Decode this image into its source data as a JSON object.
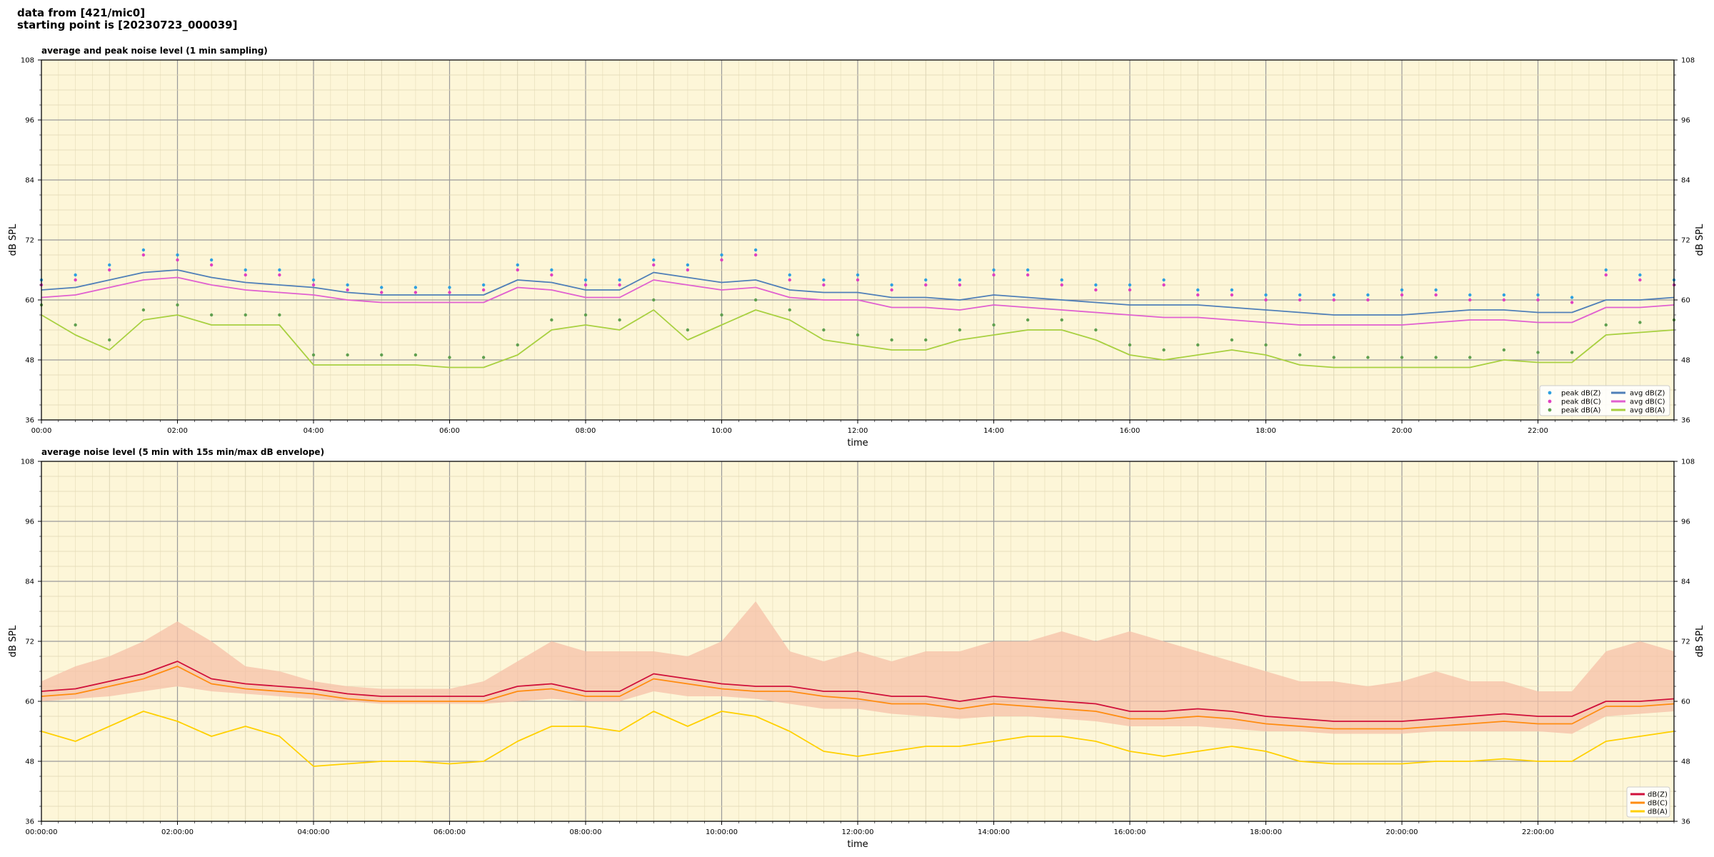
{
  "header": {
    "line1": "data from [421/mic0]",
    "line2": "starting point is [20230723_000039]"
  },
  "chart_data": [
    {
      "type": "line",
      "title": "average and peak noise level (1 min sampling)",
      "xlabel": "time",
      "ylabel": "dB SPL",
      "ylabel_right": "dB SPL",
      "xlim": [
        0,
        24
      ],
      "ylim": [
        36,
        108
      ],
      "yticks": [
        36,
        48,
        60,
        72,
        84,
        96,
        108
      ],
      "xticks": [
        0,
        2,
        4,
        6,
        8,
        10,
        12,
        14,
        16,
        18,
        20,
        22
      ],
      "xticklabels": [
        "00:00",
        "02:00",
        "04:00",
        "06:00",
        "08:00",
        "10:00",
        "12:00",
        "14:00",
        "16:00",
        "18:00",
        "20:00",
        "22:00"
      ],
      "grid": true,
      "background": "#fdf6d8",
      "legend_position": "lower-right",
      "legend_columns": 2,
      "x": [
        0,
        0.5,
        1,
        1.5,
        2,
        2.5,
        3,
        3.5,
        4,
        4.5,
        5,
        5.5,
        6,
        6.5,
        7,
        7.5,
        8,
        8.5,
        9,
        9.5,
        10,
        10.5,
        11,
        11.5,
        12,
        12.5,
        13,
        13.5,
        14,
        14.5,
        15,
        15.5,
        16,
        16.5,
        17,
        17.5,
        18,
        18.5,
        19,
        19.5,
        20,
        20.5,
        21,
        21.5,
        22,
        22.5,
        23,
        23.5,
        24
      ],
      "series": [
        {
          "name": "avg dB(Z)",
          "kind": "line",
          "color": "#4f7fb8",
          "values": [
            62,
            62.5,
            64,
            65.5,
            66,
            64.5,
            63.5,
            63,
            62.5,
            61.5,
            61,
            61,
            61,
            61,
            64,
            63.5,
            62,
            62,
            65.5,
            64.5,
            63.5,
            64,
            62,
            61.5,
            61.5,
            60.5,
            60.5,
            60,
            61,
            60.5,
            60,
            59.5,
            59,
            59,
            59,
            58.5,
            58,
            57.5,
            57,
            57,
            57,
            57.5,
            58,
            58,
            57.5,
            57.5,
            60,
            60,
            60.5
          ]
        },
        {
          "name": "avg dB(C)",
          "kind": "line",
          "color": "#e060d0",
          "values": [
            60.5,
            61,
            62.5,
            64,
            64.5,
            63,
            62,
            61.5,
            61,
            60,
            59.5,
            59.5,
            59.5,
            59.5,
            62.5,
            62,
            60.5,
            60.5,
            64,
            63,
            62,
            62.5,
            60.5,
            60,
            60,
            58.5,
            58.5,
            58,
            59,
            58.5,
            58,
            57.5,
            57,
            56.5,
            56.5,
            56,
            55.5,
            55,
            55,
            55,
            55,
            55.5,
            56,
            56,
            55.5,
            55.5,
            58.5,
            58.5,
            59
          ]
        },
        {
          "name": "avg dB(A)",
          "kind": "line",
          "color": "#a8d040",
          "values": [
            57,
            53,
            50,
            56,
            57,
            55,
            55,
            55,
            47,
            47,
            47,
            47,
            46.5,
            46.5,
            49,
            54,
            55,
            54,
            58,
            52,
            55,
            58,
            56,
            52,
            51,
            50,
            50,
            52,
            53,
            54,
            54,
            52,
            49,
            48,
            49,
            50,
            49,
            47,
            46.5,
            46.5,
            46.5,
            46.5,
            46.5,
            48,
            47.5,
            47.5,
            53,
            53.5,
            54
          ]
        },
        {
          "name": "peak dB(Z)",
          "kind": "scatter",
          "color": "#2ea0e0",
          "values": [
            64,
            65,
            67,
            70,
            69,
            68,
            66,
            66,
            64,
            63,
            62.5,
            62.5,
            62.5,
            63,
            67,
            66,
            64,
            64,
            68,
            67,
            69,
            70,
            65,
            64,
            65,
            63,
            64,
            64,
            66,
            66,
            64,
            63,
            63,
            64,
            62,
            62,
            61,
            61,
            61,
            61,
            62,
            62,
            61,
            61,
            61,
            60.5,
            66,
            65,
            64
          ]
        },
        {
          "name": "peak dB(C)",
          "kind": "scatter",
          "color": "#e040c0",
          "values": [
            63,
            64,
            66,
            69,
            68,
            67,
            65,
            65,
            63,
            62,
            61.5,
            61.5,
            61.5,
            62,
            66,
            65,
            63,
            63,
            67,
            66,
            68,
            69,
            64,
            63,
            64,
            62,
            63,
            63,
            65,
            65,
            63,
            62,
            62,
            63,
            61,
            61,
            60,
            60,
            60,
            60,
            61,
            61,
            60,
            60,
            60,
            59.5,
            65,
            64,
            63
          ]
        },
        {
          "name": "peak dB(A)",
          "kind": "scatter",
          "color": "#60a050",
          "values": [
            59,
            55,
            52,
            58,
            59,
            57,
            57,
            57,
            49,
            49,
            49,
            49,
            48.5,
            48.5,
            51,
            56,
            57,
            56,
            60,
            54,
            57,
            60,
            58,
            54,
            53,
            52,
            52,
            54,
            55,
            56,
            56,
            54,
            51,
            50,
            51,
            52,
            51,
            49,
            48.5,
            48.5,
            48.5,
            48.5,
            48.5,
            50,
            49.5,
            49.5,
            55,
            55.5,
            56
          ]
        }
      ]
    },
    {
      "type": "line",
      "title": "average noise level (5 min with 15s min/max dB envelope)",
      "xlabel": "time",
      "ylabel": "dB SPL",
      "ylabel_right": "dB SPL",
      "xlim": [
        0,
        24
      ],
      "ylim": [
        36,
        108
      ],
      "yticks": [
        36,
        48,
        60,
        72,
        84,
        96,
        108
      ],
      "xticks": [
        0,
        2,
        4,
        6,
        8,
        10,
        12,
        14,
        16,
        18,
        20,
        22
      ],
      "xticklabels": [
        "00:00:00",
        "02:00:00",
        "04:00:00",
        "06:00:00",
        "08:00:00",
        "10:00:00",
        "12:00:00",
        "14:00:00",
        "16:00:00",
        "18:00:00",
        "20:00:00",
        "22:00:00"
      ],
      "grid": true,
      "background": "#fdf6d8",
      "legend_position": "lower-right",
      "legend_columns": 1,
      "x": [
        0,
        0.5,
        1,
        1.5,
        2,
        2.5,
        3,
        3.5,
        4,
        4.5,
        5,
        5.5,
        6,
        6.5,
        7,
        7.5,
        8,
        8.5,
        9,
        9.5,
        10,
        10.5,
        11,
        11.5,
        12,
        12.5,
        13,
        13.5,
        14,
        14.5,
        15,
        15.5,
        16,
        16.5,
        17,
        17.5,
        18,
        18.5,
        19,
        19.5,
        20,
        20.5,
        21,
        21.5,
        22,
        22.5,
        23,
        23.5,
        24
      ],
      "envelope": {
        "color": "#f5c0a8",
        "min": [
          60,
          60.5,
          61,
          62,
          63,
          62,
          61.5,
          61,
          60.5,
          60,
          59.5,
          59.5,
          59.5,
          59.5,
          60,
          60.5,
          60,
          60,
          62,
          61,
          61,
          60.5,
          59.5,
          58.5,
          58.5,
          57.5,
          57,
          56.5,
          57,
          57,
          56.5,
          56,
          55,
          55,
          55,
          54.5,
          54,
          54,
          53.5,
          53.5,
          53.5,
          54,
          54,
          54,
          54,
          53.5,
          57,
          57.5,
          58
        ],
        "max": [
          64,
          67,
          69,
          72,
          76,
          72,
          67,
          66,
          64,
          63,
          62.5,
          62.5,
          62.5,
          64,
          68,
          72,
          70,
          70,
          70,
          69,
          72,
          80,
          70,
          68,
          70,
          68,
          70,
          70,
          72,
          72,
          74,
          72,
          74,
          72,
          70,
          68,
          66,
          64,
          64,
          63,
          64,
          66,
          64,
          64,
          62,
          62,
          70,
          72,
          70
        ]
      },
      "series": [
        {
          "name": "dB(Z)",
          "kind": "line",
          "color": "#d0103a",
          "values": [
            62,
            62.5,
            64,
            65.5,
            68,
            64.5,
            63.5,
            63,
            62.5,
            61.5,
            61,
            61,
            61,
            61,
            63,
            63.5,
            62,
            62,
            65.5,
            64.5,
            63.5,
            63,
            63,
            62,
            62,
            61,
            61,
            60,
            61,
            60.5,
            60,
            59.5,
            58,
            58,
            58.5,
            58,
            57,
            56.5,
            56,
            56,
            56,
            56.5,
            57,
            57.5,
            57,
            57,
            60,
            60,
            60.5
          ]
        },
        {
          "name": "dB(C)",
          "kind": "line",
          "color": "#ff8c10",
          "values": [
            61,
            61.5,
            63,
            64.5,
            67,
            63.5,
            62.5,
            62,
            61.5,
            60.5,
            60,
            60,
            60,
            60,
            62,
            62.5,
            61,
            61,
            64.5,
            63.5,
            62.5,
            62,
            62,
            61,
            60.5,
            59.5,
            59.5,
            58.5,
            59.5,
            59,
            58.5,
            58,
            56.5,
            56.5,
            57,
            56.5,
            55.5,
            55,
            54.5,
            54.5,
            54.5,
            55,
            55.5,
            56,
            55.5,
            55.5,
            59,
            59,
            59.5
          ]
        },
        {
          "name": "dB(A)",
          "kind": "line",
          "color": "#ffd000",
          "values": [
            54,
            52,
            55,
            58,
            56,
            53,
            55,
            53,
            47,
            47.5,
            48,
            48,
            47.5,
            48,
            52,
            55,
            55,
            54,
            58,
            55,
            58,
            57,
            54,
            50,
            49,
            50,
            51,
            51,
            52,
            53,
            53,
            52,
            50,
            49,
            50,
            51,
            50,
            48,
            47.5,
            47.5,
            47.5,
            48,
            48,
            48.5,
            48,
            48,
            52,
            53,
            54
          ]
        }
      ]
    }
  ]
}
